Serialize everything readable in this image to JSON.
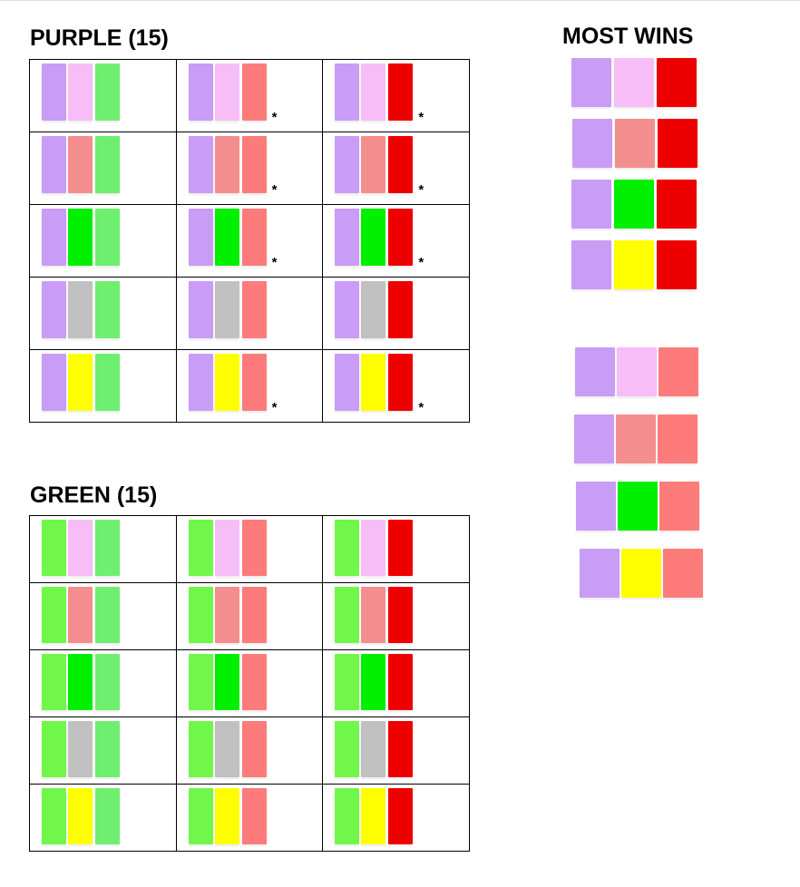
{
  "colors": {
    "purple": "#c99cf5",
    "light_pink": "#f6bdf6",
    "salmon": "#f48e8e",
    "coral": "#fe7b7b",
    "red": "#ef0000",
    "light_green": "#6fef6f",
    "lime": "#70f74a",
    "bright_green": "#00f000",
    "gray": "#c0c0c0",
    "yellow": "#fefe00"
  },
  "purple_section": {
    "title": "PURPLE (15)",
    "rows": [
      [
        {
          "swatches": [
            "purple",
            "light_pink",
            "light_green"
          ],
          "star": false
        },
        {
          "swatches": [
            "purple",
            "light_pink",
            "coral"
          ],
          "star": true
        },
        {
          "swatches": [
            "purple",
            "light_pink",
            "red"
          ],
          "star": true
        }
      ],
      [
        {
          "swatches": [
            "purple",
            "salmon",
            "light_green"
          ],
          "star": false
        },
        {
          "swatches": [
            "purple",
            "salmon",
            "coral"
          ],
          "star": true
        },
        {
          "swatches": [
            "purple",
            "salmon",
            "red"
          ],
          "star": true
        }
      ],
      [
        {
          "swatches": [
            "purple",
            "bright_green",
            "light_green"
          ],
          "star": false
        },
        {
          "swatches": [
            "purple",
            "bright_green",
            "coral"
          ],
          "star": true
        },
        {
          "swatches": [
            "purple",
            "bright_green",
            "red"
          ],
          "star": true
        }
      ],
      [
        {
          "swatches": [
            "purple",
            "gray",
            "light_green"
          ],
          "star": false
        },
        {
          "swatches": [
            "purple",
            "gray",
            "coral"
          ],
          "star": false
        },
        {
          "swatches": [
            "purple",
            "gray",
            "red"
          ],
          "star": false
        }
      ],
      [
        {
          "swatches": [
            "purple",
            "yellow",
            "light_green"
          ],
          "star": false
        },
        {
          "swatches": [
            "purple",
            "yellow",
            "coral"
          ],
          "star": true
        },
        {
          "swatches": [
            "purple",
            "yellow",
            "red"
          ],
          "star": true
        }
      ]
    ]
  },
  "green_section": {
    "title": "GREEN (15)",
    "rows": [
      [
        {
          "swatches": [
            "lime",
            "light_pink",
            "light_green"
          ],
          "star": false
        },
        {
          "swatches": [
            "lime",
            "light_pink",
            "coral"
          ],
          "star": false
        },
        {
          "swatches": [
            "lime",
            "light_pink",
            "red"
          ],
          "star": false
        }
      ],
      [
        {
          "swatches": [
            "lime",
            "salmon",
            "light_green"
          ],
          "star": false
        },
        {
          "swatches": [
            "lime",
            "salmon",
            "coral"
          ],
          "star": false
        },
        {
          "swatches": [
            "lime",
            "salmon",
            "red"
          ],
          "star": false
        }
      ],
      [
        {
          "swatches": [
            "lime",
            "bright_green",
            "light_green"
          ],
          "star": false
        },
        {
          "swatches": [
            "lime",
            "bright_green",
            "coral"
          ],
          "star": false
        },
        {
          "swatches": [
            "lime",
            "bright_green",
            "red"
          ],
          "star": false
        }
      ],
      [
        {
          "swatches": [
            "lime",
            "gray",
            "light_green"
          ],
          "star": false
        },
        {
          "swatches": [
            "lime",
            "gray",
            "coral"
          ],
          "star": false
        },
        {
          "swatches": [
            "lime",
            "gray",
            "red"
          ],
          "star": false
        }
      ],
      [
        {
          "swatches": [
            "lime",
            "yellow",
            "light_green"
          ],
          "star": false
        },
        {
          "swatches": [
            "lime",
            "yellow",
            "coral"
          ],
          "star": false
        },
        {
          "swatches": [
            "lime",
            "yellow",
            "red"
          ],
          "star": false
        }
      ]
    ]
  },
  "star_symbol": "*",
  "most_wins": {
    "title": "MOST WINS",
    "groups": [
      [
        [
          "purple",
          "light_pink",
          "red"
        ],
        [
          "purple",
          "salmon",
          "red"
        ],
        [
          "purple",
          "bright_green",
          "red"
        ],
        [
          "purple",
          "yellow",
          "red"
        ]
      ],
      [
        [
          "purple",
          "light_pink",
          "coral"
        ],
        [
          "purple",
          "salmon",
          "coral"
        ],
        [
          "purple",
          "bright_green",
          "coral"
        ],
        [
          "purple",
          "yellow",
          "coral"
        ]
      ]
    ]
  }
}
